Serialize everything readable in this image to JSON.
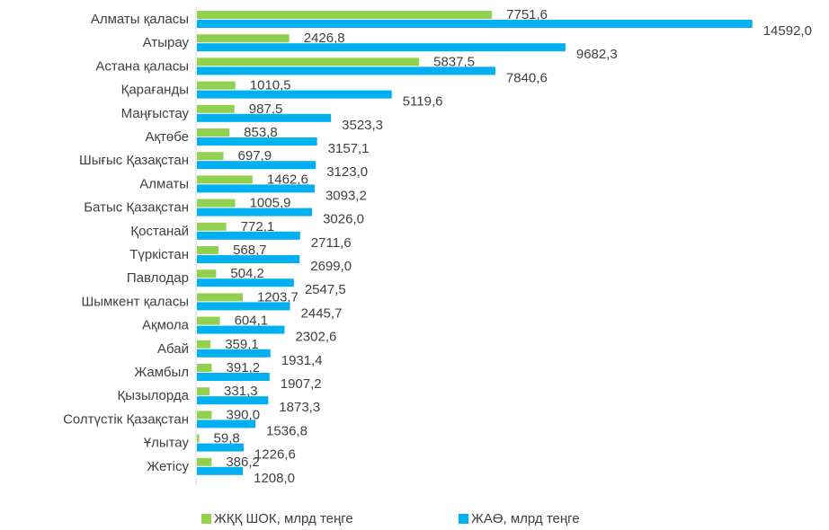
{
  "chart_data": {
    "type": "hbar",
    "categories": [
      "Алматы қаласы",
      "Атырау",
      "Астана қаласы",
      "Қарағанды",
      "Маңғыстау",
      "Ақтөбе",
      "Шығыс Қазақстан",
      "Алматы",
      "Батыс Қазақстан",
      "Қостанай",
      "Түркістан",
      "Павлодар",
      "Шымкент қаласы",
      "Ақмола",
      "Абай",
      "Жамбыл",
      "Қызылорда",
      "Солтүстік Қазақстан",
      "Ұлытау",
      "Жетісу"
    ],
    "series": [
      {
        "name": "ЖҚҚ ШОК, млрд теңге",
        "color": "#92d050",
        "values": [
          7751.6,
          2426.8,
          5837.5,
          1010.5,
          987.5,
          853.8,
          697.9,
          1462.6,
          1005.9,
          772.1,
          568.7,
          504.2,
          1203.7,
          604.1,
          359.1,
          391.2,
          331.3,
          390.0,
          59.8,
          386.2
        ],
        "value_labels": [
          "7751,6",
          "2426,8",
          "5837,5",
          "1010,5",
          "987,5",
          "853,8",
          "697,9",
          "1462,6",
          "1005,9",
          "772,1",
          "568,7",
          "504,2",
          "1203,7",
          "604,1",
          "359,1",
          "391,2",
          "331,3",
          "390,0",
          "59,8",
          "386,2"
        ]
      },
      {
        "name": "ЖАӨ, млрд теңге",
        "color": "#00b0f0",
        "values": [
          14592.0,
          9682.3,
          7840.6,
          5119.6,
          3523.3,
          3157.1,
          3123.0,
          3093.2,
          3026.0,
          2711.6,
          2699.0,
          2547.5,
          2445.7,
          2302.6,
          1931.4,
          1907.2,
          1873.3,
          1536.8,
          1226.6,
          1208.0
        ],
        "value_labels": [
          "14592,0",
          "9682,3",
          "7840,6",
          "5119,6",
          "3523,3",
          "3157,1",
          "3123,0",
          "3093,2",
          "3026,0",
          "2711,6",
          "2699,0",
          "2547,5",
          "2445,7",
          "2302,6",
          "1931,4",
          "1907,2",
          "1873,3",
          "1536,8",
          "1226,6",
          "1208,0"
        ]
      }
    ],
    "xlim": [
      0,
      15000
    ],
    "legend": "bottom"
  }
}
